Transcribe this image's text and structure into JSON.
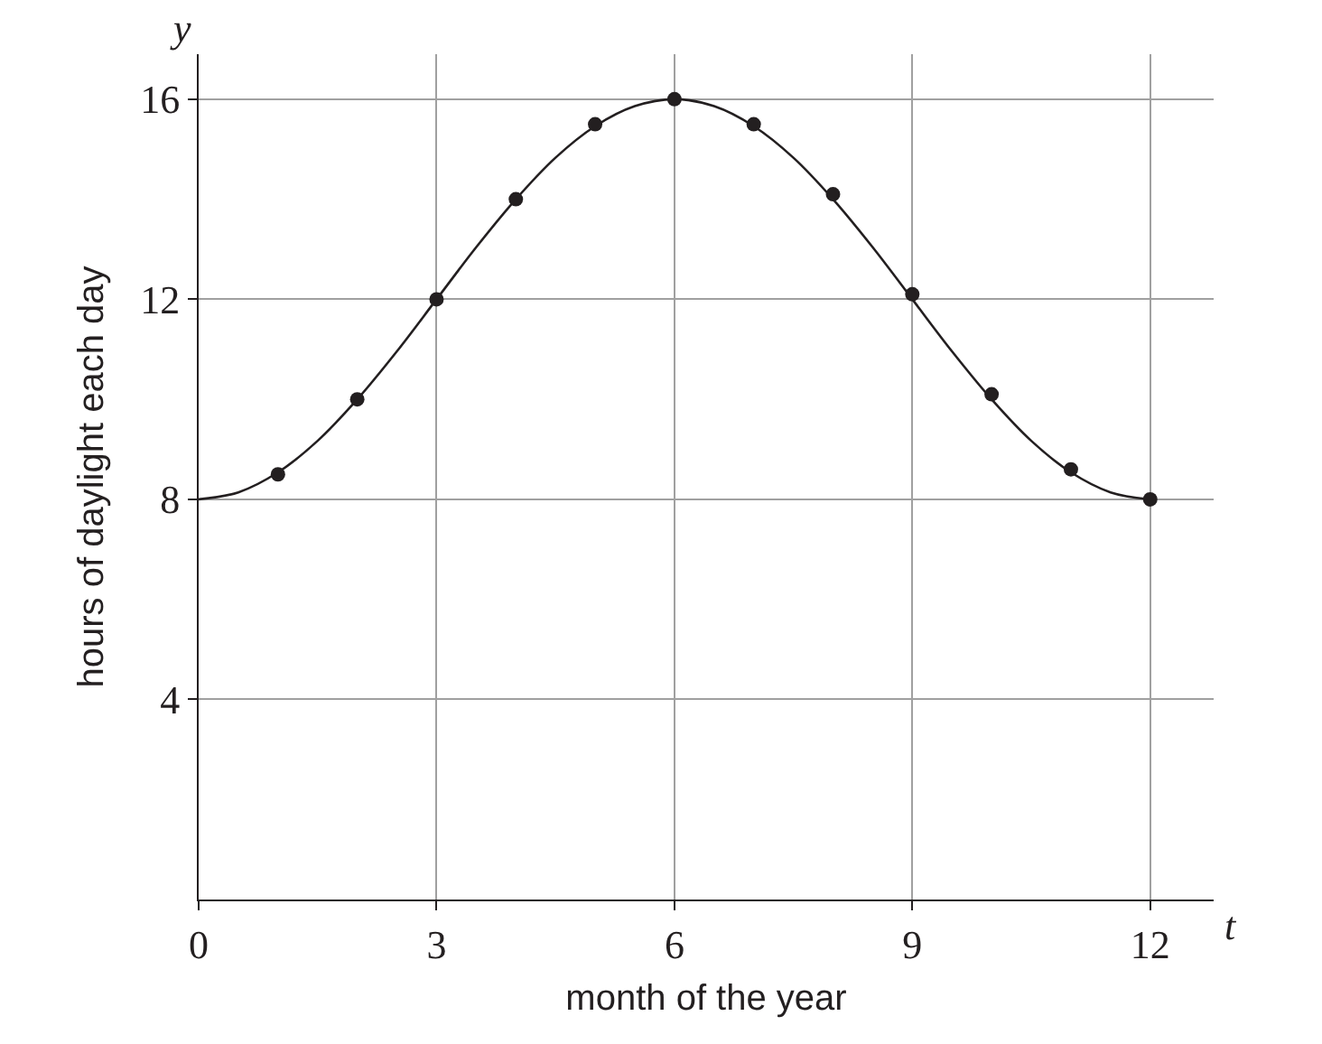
{
  "chart_data": {
    "type": "scatter",
    "xlabel": "month of the year",
    "ylabel": "hours of daylight each day",
    "annotations": [
      "y",
      "t"
    ],
    "series": [
      {
        "type": "line",
        "color": "#231f20",
        "marker": "none",
        "x": [
          0,
          0.5,
          1,
          1.5,
          2,
          2.5,
          3,
          3.5,
          4,
          4.5,
          5,
          5.5,
          6,
          6.5,
          7,
          7.5,
          8,
          8.5,
          9,
          9.5,
          10,
          10.5,
          11,
          11.5,
          12
        ],
        "values": [
          8,
          8.14,
          8.54,
          9.17,
          10,
          10.96,
          12,
          13.04,
          14,
          14.83,
          15.46,
          15.86,
          16,
          15.86,
          15.46,
          14.83,
          14,
          13.04,
          12,
          10.96,
          10,
          9.17,
          8.54,
          8.14,
          8
        ]
      },
      {
        "color": "#231f20",
        "marker": "circle",
        "x": [
          1,
          2,
          3,
          4,
          5,
          6,
          7,
          8,
          9,
          10,
          11,
          12
        ],
        "values": [
          8.5,
          10,
          12,
          14,
          15.5,
          16,
          15.5,
          14.1,
          12.1,
          10.1,
          8.6,
          8
        ]
      }
    ],
    "xlim": [
      0,
      12.8
    ],
    "ylim": [
      0,
      16.9
    ],
    "xticks": [
      0,
      3,
      6,
      9,
      12
    ],
    "yticks": [
      4,
      8,
      12,
      16
    ],
    "grid": true,
    "legend": false
  }
}
